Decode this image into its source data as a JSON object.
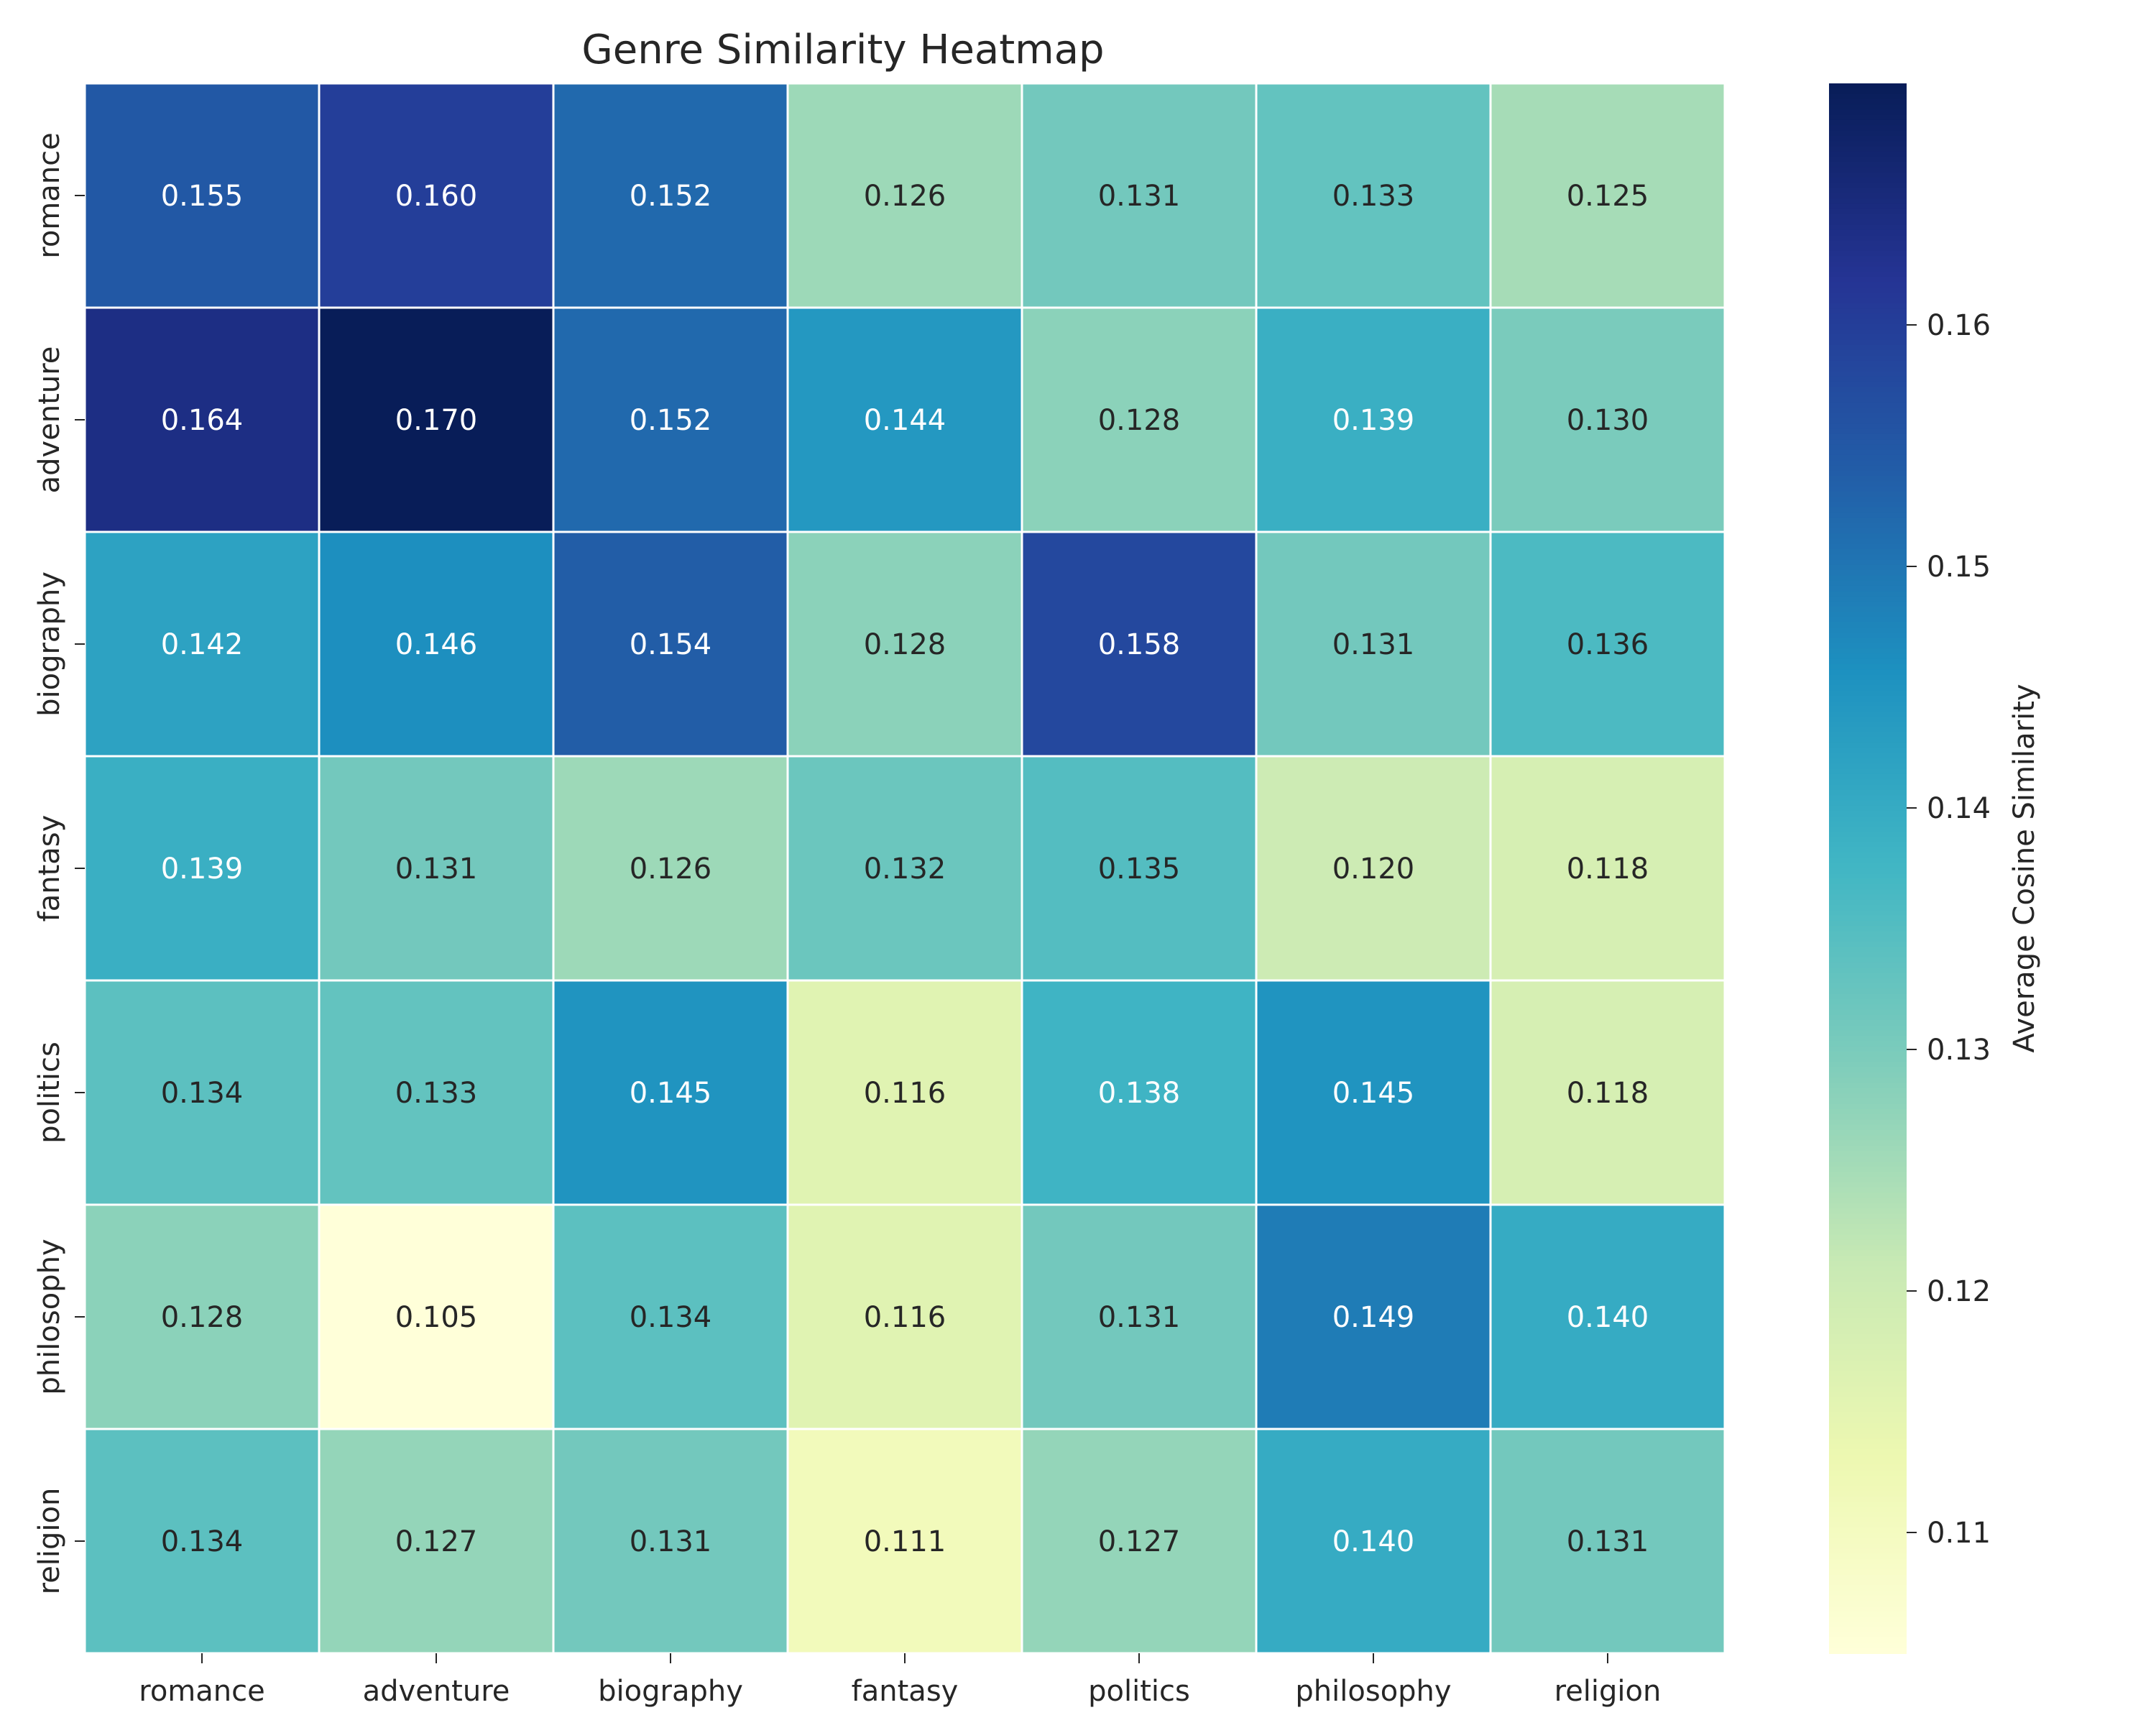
{
  "chart_data": {
    "type": "heatmap",
    "title": "Genre Similarity Heatmap",
    "xlabel": "",
    "ylabel": "",
    "x_categories": [
      "romance",
      "adventure",
      "biography",
      "fantasy",
      "politics",
      "philosophy",
      "religion"
    ],
    "y_categories": [
      "romance",
      "adventure",
      "biography",
      "fantasy",
      "politics",
      "philosophy",
      "religion"
    ],
    "values": [
      [
        0.155,
        0.16,
        0.152,
        0.126,
        0.131,
        0.133,
        0.125
      ],
      [
        0.164,
        0.17,
        0.152,
        0.144,
        0.128,
        0.139,
        0.13
      ],
      [
        0.142,
        0.146,
        0.154,
        0.128,
        0.158,
        0.131,
        0.136
      ],
      [
        0.139,
        0.131,
        0.126,
        0.132,
        0.135,
        0.12,
        0.118
      ],
      [
        0.134,
        0.133,
        0.145,
        0.116,
        0.138,
        0.145,
        0.118
      ],
      [
        0.128,
        0.105,
        0.134,
        0.116,
        0.131,
        0.149,
        0.14
      ],
      [
        0.134,
        0.127,
        0.131,
        0.111,
        0.127,
        0.14,
        0.131
      ]
    ],
    "value_format": "0.000",
    "colormap": "YlGnBu",
    "vmin": 0.105,
    "vmax": 0.17,
    "colorbar": {
      "label": "Average Cosine Similarity",
      "ticks": [
        0.11,
        0.12,
        0.13,
        0.14,
        0.15,
        0.16
      ],
      "tick_labels": [
        "0.11",
        "0.12",
        "0.13",
        "0.14",
        "0.15",
        "0.16"
      ]
    },
    "grid": false,
    "cell_border_color": "#ffffff"
  },
  "colors": {
    "text_dark": "#262626",
    "text_light": "#ffffff",
    "cell_border": "#ffffff"
  }
}
